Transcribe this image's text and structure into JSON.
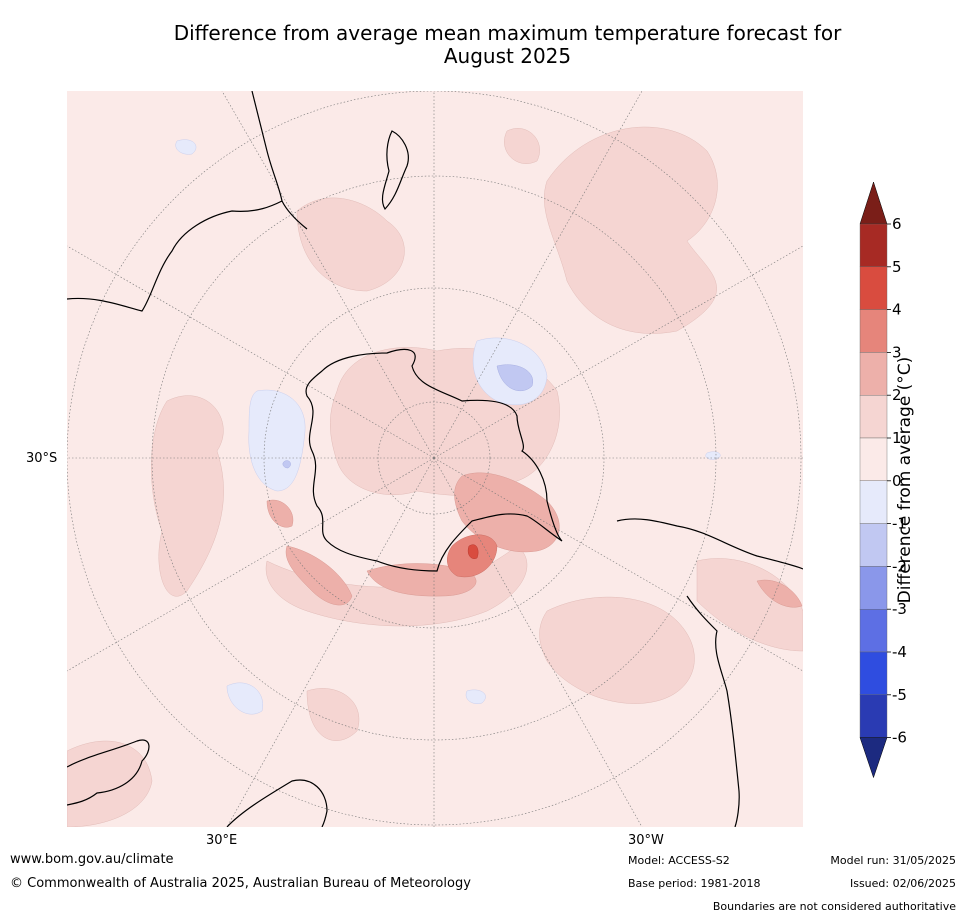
{
  "title_line1": "Difference from average mean maximum temperature forecast for",
  "title_line2": "August 2025",
  "map": {
    "projection": "south-polar-stereographic",
    "lat_label_left": "30°S",
    "lon_label_left": "30°E",
    "lon_label_right": "30°W",
    "background_anomaly_bin": "0 to 1",
    "colors": {
      "bin_0_1": "#fbeae8",
      "bin_1_2": "#f5d5d2",
      "bin_2_3": "#edb0aa",
      "bin_3_4": "#e6857b",
      "bin_4_5": "#d94c3f",
      "bin_neg1_0": "#e6eafb",
      "bin_neg2_neg1": "#c1c8f2"
    }
  },
  "colorbar": {
    "title": "Difference from average ($^\\circ$C)",
    "title_display": "Difference from average (°C)",
    "ticks": [
      "6",
      "5",
      "4",
      "3",
      "2",
      "1",
      "0",
      "-1",
      "-2",
      "-3",
      "-4",
      "-5",
      "-6"
    ],
    "bins": [
      {
        "range": "5 to 6",
        "color": "#a72a24"
      },
      {
        "range": "4 to 5",
        "color": "#d94c3f"
      },
      {
        "range": "3 to 4",
        "color": "#e6857b"
      },
      {
        "range": "2 to 3",
        "color": "#edb0aa"
      },
      {
        "range": "1 to 2",
        "color": "#f5d5d2"
      },
      {
        "range": "0 to 1",
        "color": "#fbeae8"
      },
      {
        "range": "-1 to 0",
        "color": "#e6eafb"
      },
      {
        "range": "-2 to -1",
        "color": "#c1c8f2"
      },
      {
        "range": "-3 to -2",
        "color": "#8a97ea"
      },
      {
        "range": "-4 to -3",
        "color": "#5d6fe4"
      },
      {
        "range": "-5 to -4",
        "color": "#2f4de0"
      },
      {
        "range": "-6 to -5",
        "color": "#2a3bb3"
      }
    ],
    "top_arrow_color": "#7a1e18",
    "bottom_arrow_color": "#1c2a80"
  },
  "footer": {
    "website": "www.bom.gov.au/climate",
    "copyright": "© Commonwealth of Australia 2025, Australian Bureau of Meteorology",
    "model": "Model: ACCESS-S2",
    "base_period": "Base period: 1981-2018",
    "model_run": "Model run: 31/05/2025",
    "issued": "Issued: 02/06/2025",
    "disclaimer": "Boundaries are not considered authoritative"
  }
}
